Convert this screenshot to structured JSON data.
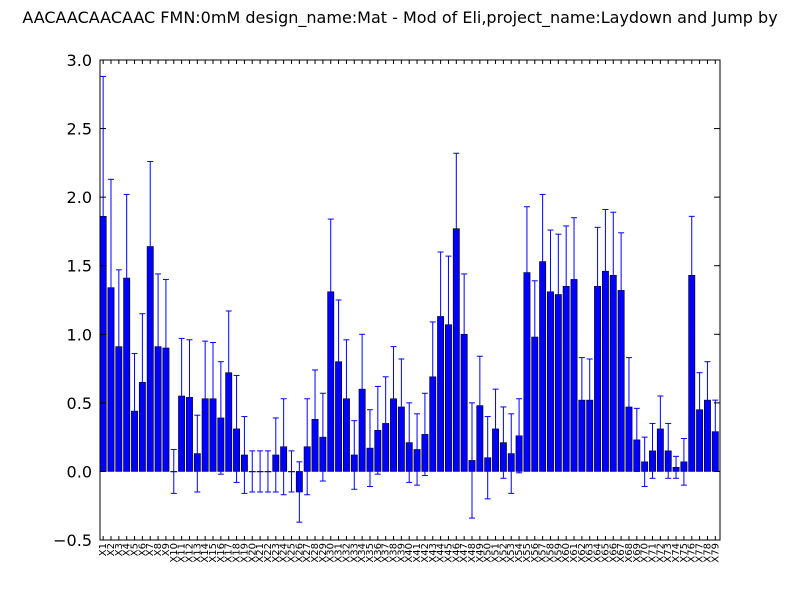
{
  "chart_data": {
    "type": "bar",
    "title": "AACAACAACAAC  FMN:0mM  design_name:Mat - Mod of Eli,project_name:Laydown and Jump by",
    "xlabel": "",
    "ylabel": "",
    "ylim": [
      -0.5,
      3.0
    ],
    "yticks": [
      "−0.5",
      "0.0",
      "0.5",
      "1.0",
      "1.5",
      "2.0",
      "2.5",
      "3.0"
    ],
    "grid": false,
    "bar_color": "#0000ff",
    "error_color": "#0000ff",
    "categories": [
      "X1",
      "X2",
      "X3",
      "X4",
      "X5",
      "X6",
      "X7",
      "X8",
      "X9",
      "X10",
      "X11",
      "X12",
      "X13",
      "X14",
      "X15",
      "X16",
      "X17",
      "X18",
      "X19",
      "X20",
      "X21",
      "X22",
      "X23",
      "X24",
      "X25",
      "X26",
      "X27",
      "X28",
      "X29",
      "X30",
      "X31",
      "X32",
      "X33",
      "X34",
      "X35",
      "X36",
      "X37",
      "X38",
      "X39",
      "X40",
      "X41",
      "X42",
      "X43",
      "X44",
      "X45",
      "X46",
      "X47",
      "X48",
      "X49",
      "X50",
      "X51",
      "X52",
      "X53",
      "X54",
      "X55",
      "X56",
      "X57",
      "X58",
      "X59",
      "X60",
      "X61",
      "X62",
      "X63",
      "X64",
      "X65",
      "X66",
      "X67",
      "X68",
      "X69",
      "X70",
      "X71",
      "X72",
      "X73",
      "X74",
      "X75",
      "X76",
      "X77",
      "X78",
      "X79"
    ],
    "values": [
      1.86,
      1.34,
      0.91,
      1.41,
      0.44,
      0.65,
      1.64,
      0.91,
      0.9,
      0.0,
      0.55,
      0.54,
      0.13,
      0.53,
      0.53,
      0.39,
      0.72,
      0.31,
      0.12,
      0.0,
      0.0,
      0.0,
      0.12,
      0.18,
      0.0,
      -0.15,
      0.18,
      0.38,
      0.25,
      1.31,
      0.8,
      0.53,
      0.12,
      0.6,
      0.17,
      0.3,
      0.35,
      0.53,
      0.47,
      0.21,
      0.16,
      0.27,
      0.69,
      1.13,
      1.07,
      1.77,
      1.0,
      0.08,
      0.48,
      0.1,
      0.31,
      0.21,
      0.13,
      0.26,
      1.45,
      0.98,
      1.53,
      1.31,
      1.29,
      1.35,
      1.4,
      0.52,
      0.52,
      1.35,
      1.46,
      1.43,
      1.32,
      0.47,
      0.23,
      0.07,
      0.15,
      0.31,
      0.15,
      0.03,
      0.07,
      1.43,
      0.45,
      0.52,
      0.29
    ],
    "errors": [
      1.02,
      0.79,
      0.56,
      0.61,
      0.42,
      0.5,
      0.62,
      0.53,
      0.5,
      0.16,
      0.42,
      0.42,
      0.28,
      0.42,
      0.41,
      0.41,
      0.45,
      0.39,
      0.28,
      0.15,
      0.15,
      0.15,
      0.27,
      0.35,
      0.15,
      0.22,
      0.35,
      0.36,
      0.32,
      0.53,
      0.45,
      0.43,
      0.25,
      0.4,
      0.28,
      0.32,
      0.34,
      0.38,
      0.35,
      0.29,
      0.26,
      0.3,
      0.4,
      0.47,
      0.5,
      0.55,
      0.44,
      0.42,
      0.36,
      0.3,
      0.29,
      0.26,
      0.29,
      0.27,
      0.48,
      0.41,
      0.49,
      0.45,
      0.44,
      0.44,
      0.45,
      0.31,
      0.3,
      0.43,
      0.45,
      0.46,
      0.42,
      0.36,
      0.23,
      0.18,
      0.2,
      0.24,
      0.2,
      0.08,
      0.17,
      0.43,
      0.27,
      0.28,
      0.23
    ]
  }
}
